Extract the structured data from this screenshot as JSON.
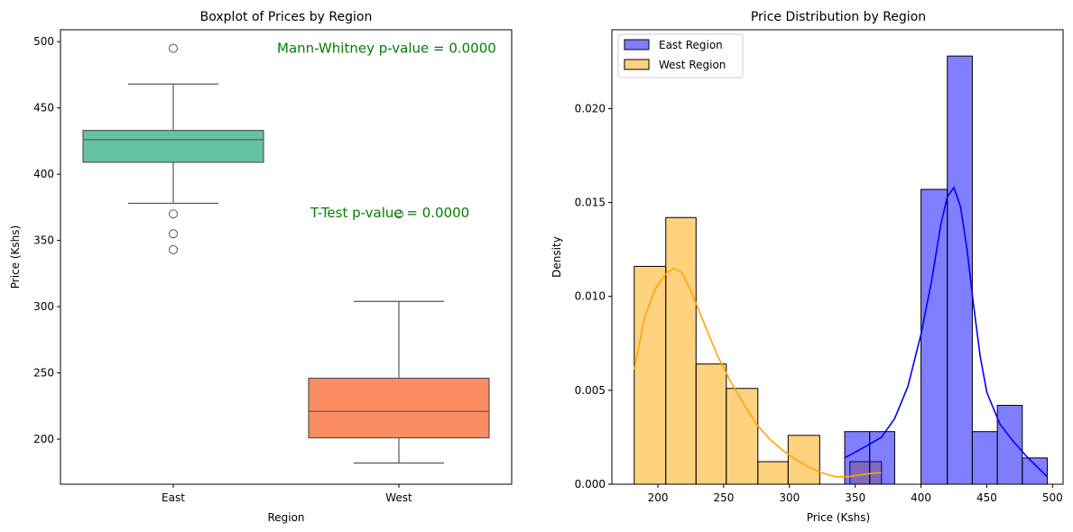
{
  "chart_data": [
    {
      "type": "box",
      "title": "Boxplot of Prices by Region",
      "xlabel": "Region",
      "ylabel": "Price (Kshs)",
      "ylim": [
        166,
        509
      ],
      "yticks": [
        200,
        250,
        300,
        350,
        400,
        450,
        500
      ],
      "categories": [
        "East",
        "West"
      ],
      "boxes": [
        {
          "category": "East",
          "whisker_low": 378,
          "q1": 409,
          "median": 426,
          "q3": 433,
          "whisker_high": 468,
          "outliers": [
            495,
            370,
            355,
            343
          ],
          "color": "#66c2a5"
        },
        {
          "category": "West",
          "whisker_low": 182,
          "q1": 201,
          "median": 221,
          "q3": 246,
          "whisker_high": 304,
          "outliers": [
            370
          ],
          "color": "#fc8d62"
        }
      ],
      "annotations": [
        {
          "text": "Mann-Whitney p-value = 0.0000",
          "x": "East/West",
          "y": 495,
          "color": "#008000"
        },
        {
          "text": "T-Test p-value = 0.0000",
          "x": "West",
          "y": 371,
          "color": "#008000"
        }
      ],
      "grid": false
    },
    {
      "type": "histogram",
      "title": "Price Distribution by Region",
      "xlabel": "Price (Kshs)",
      "ylabel": "Density",
      "xlim": [
        165,
        508
      ],
      "ylim": [
        0,
        0.0242
      ],
      "xticks": [
        200,
        250,
        300,
        350,
        400,
        450,
        500
      ],
      "yticks": [
        0.0,
        0.005,
        0.01,
        0.015,
        0.02
      ],
      "ytick_labels": [
        "0.000",
        "0.005",
        "0.010",
        "0.015",
        "0.020"
      ],
      "legend_position": "top-left",
      "grid": false,
      "series": [
        {
          "name": "East Region",
          "color": "#0000ff",
          "bins": [
            {
              "x0": 342,
              "x1": 361,
              "density": 0.0028
            },
            {
              "x0": 361,
              "x1": 380,
              "density": 0.0028
            },
            {
              "x0": 380,
              "x1": 400,
              "density": 0.0
            },
            {
              "x0": 400,
              "x1": 420,
              "density": 0.0157
            },
            {
              "x0": 420,
              "x1": 439,
              "density": 0.0228
            },
            {
              "x0": 439,
              "x1": 458,
              "density": 0.0028
            },
            {
              "x0": 458,
              "x1": 477,
              "density": 0.0042
            },
            {
              "x0": 477,
              "x1": 496,
              "density": 0.0014
            }
          ],
          "kde": [
            [
              342,
              0.0014
            ],
            [
              355,
              0.0019
            ],
            [
              370,
              0.0025
            ],
            [
              380,
              0.0035
            ],
            [
              390,
              0.0052
            ],
            [
              400,
              0.008
            ],
            [
              408,
              0.0108
            ],
            [
              415,
              0.0138
            ],
            [
              420,
              0.0153
            ],
            [
              425,
              0.0158
            ],
            [
              430,
              0.0148
            ],
            [
              435,
              0.0125
            ],
            [
              440,
              0.0095
            ],
            [
              445,
              0.0068
            ],
            [
              450,
              0.0049
            ],
            [
              460,
              0.0032
            ],
            [
              470,
              0.0023
            ],
            [
              480,
              0.0015
            ],
            [
              490,
              0.0008
            ],
            [
              496,
              0.0004
            ]
          ]
        },
        {
          "name": "West Region",
          "color": "#ffa500",
          "bins": [
            {
              "x0": 182,
              "x1": 206,
              "density": 0.0116
            },
            {
              "x0": 206,
              "x1": 229,
              "density": 0.0142
            },
            {
              "x0": 229,
              "x1": 252,
              "density": 0.0064
            },
            {
              "x0": 252,
              "x1": 276,
              "density": 0.0051
            },
            {
              "x0": 276,
              "x1": 299,
              "density": 0.0012
            },
            {
              "x0": 299,
              "x1": 323,
              "density": 0.0026
            },
            {
              "x0": 323,
              "x1": 346,
              "density": 0.0
            },
            {
              "x0": 346,
              "x1": 370,
              "density": 0.0012
            }
          ],
          "kde": [
            [
              182,
              0.0061
            ],
            [
              190,
              0.0089
            ],
            [
              198,
              0.0104
            ],
            [
              206,
              0.0112
            ],
            [
              212,
              0.0115
            ],
            [
              218,
              0.0113
            ],
            [
              225,
              0.0103
            ],
            [
              235,
              0.0086
            ],
            [
              245,
              0.0069
            ],
            [
              255,
              0.0055
            ],
            [
              265,
              0.0043
            ],
            [
              275,
              0.0032
            ],
            [
              285,
              0.0024
            ],
            [
              295,
              0.0018
            ],
            [
              305,
              0.0013
            ],
            [
              315,
              0.0009
            ],
            [
              325,
              0.0006
            ],
            [
              335,
              0.0004
            ],
            [
              345,
              0.0004
            ],
            [
              355,
              0.0005
            ],
            [
              365,
              0.0006
            ],
            [
              370,
              0.0006
            ]
          ]
        }
      ]
    }
  ]
}
